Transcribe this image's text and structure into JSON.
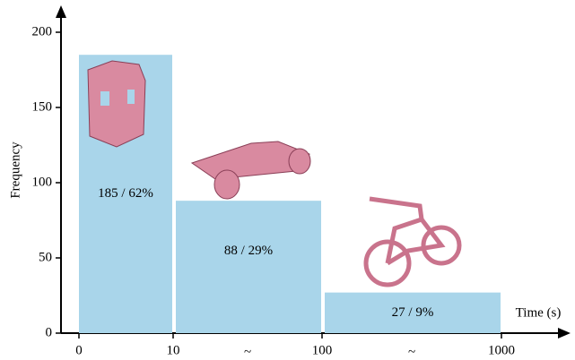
{
  "chart_data": {
    "type": "histogram",
    "bins": [
      0,
      10,
      100,
      1000
    ],
    "values": [
      185,
      88,
      27
    ],
    "value_labels": [
      "185 / 62%",
      "88 / 29%",
      "27 / 9%"
    ],
    "color": "#a9d5ea",
    "xticks": [
      0,
      10,
      100,
      1000
    ],
    "x_break_marks": [
      "~",
      "~"
    ],
    "xlabel": "Time (s)",
    "ylabel": "Frequency",
    "ylim": [
      0,
      200
    ],
    "yticks": [
      0,
      50,
      100,
      150,
      200
    ]
  }
}
